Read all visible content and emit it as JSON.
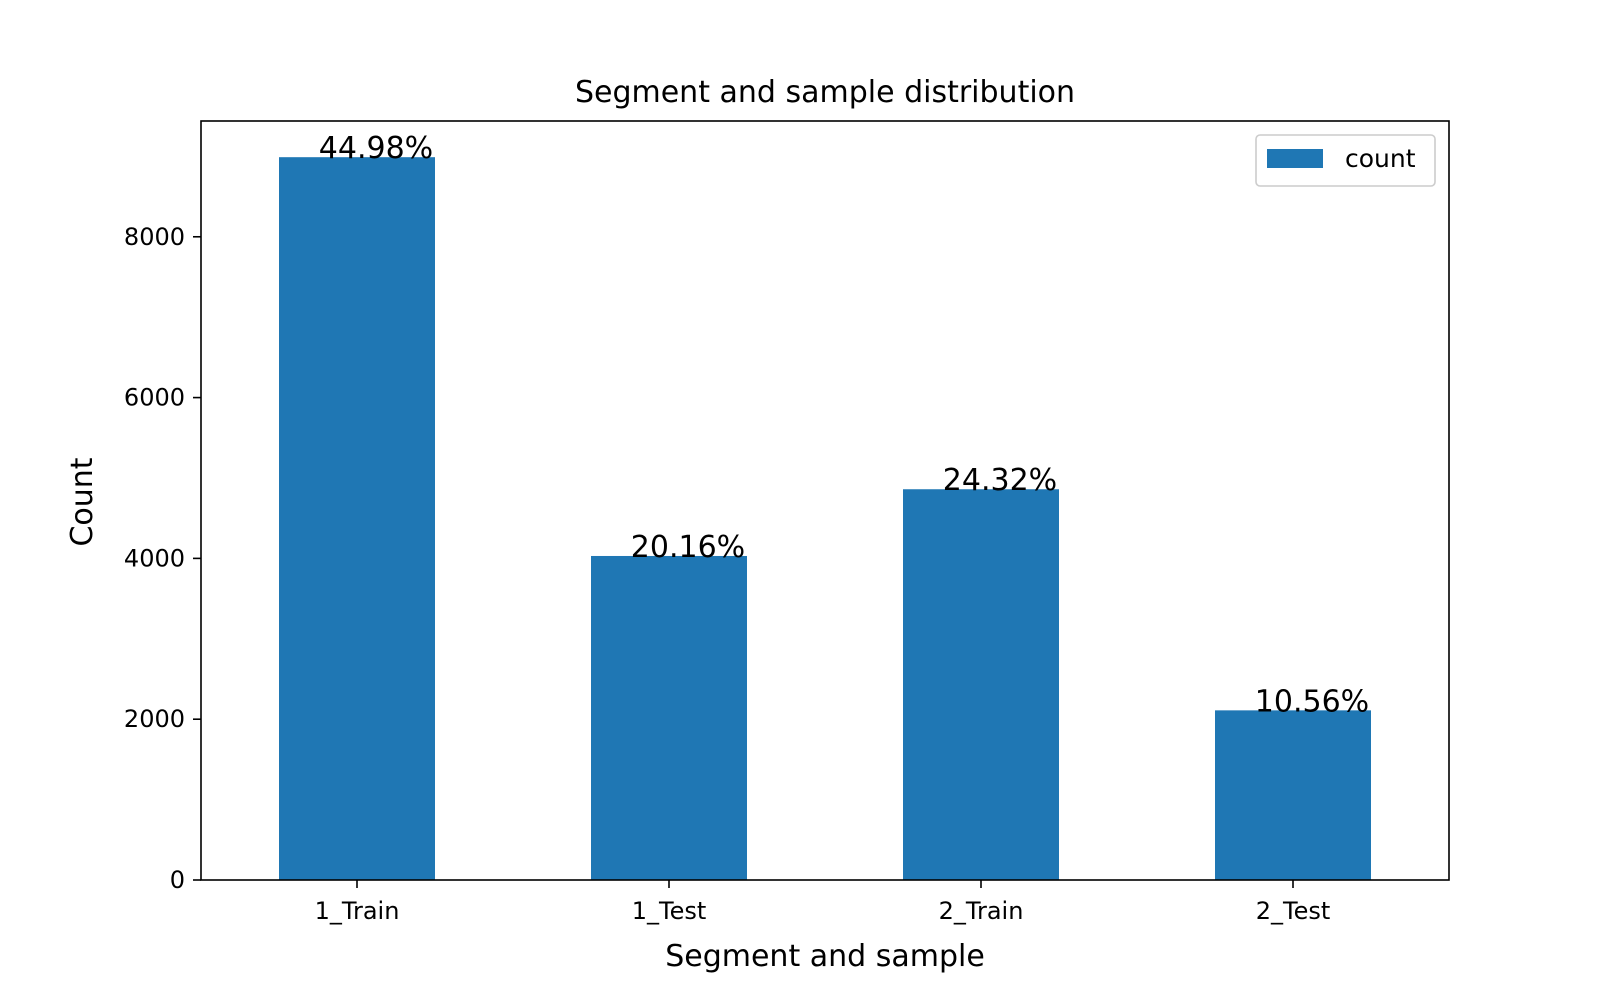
{
  "chart_data": {
    "type": "bar",
    "title": "Segment and sample distribution",
    "xlabel": "Segment and sample",
    "ylabel": "Count",
    "categories": [
      "1_Train",
      "1_Test",
      "2_Train",
      "2_Test"
    ],
    "series": [
      {
        "name": "count",
        "values": [
          8990,
          4030,
          4860,
          2110
        ],
        "labels": [
          "44.98%",
          "20.16%",
          "24.32%",
          "10.56%"
        ],
        "color": "#1f77b4"
      }
    ],
    "yticks": [
      0,
      2000,
      4000,
      6000,
      8000
    ],
    "ylim": [
      0,
      9440
    ],
    "grid": false,
    "legend": {
      "placement": "top-right",
      "entries": [
        "count"
      ]
    }
  }
}
